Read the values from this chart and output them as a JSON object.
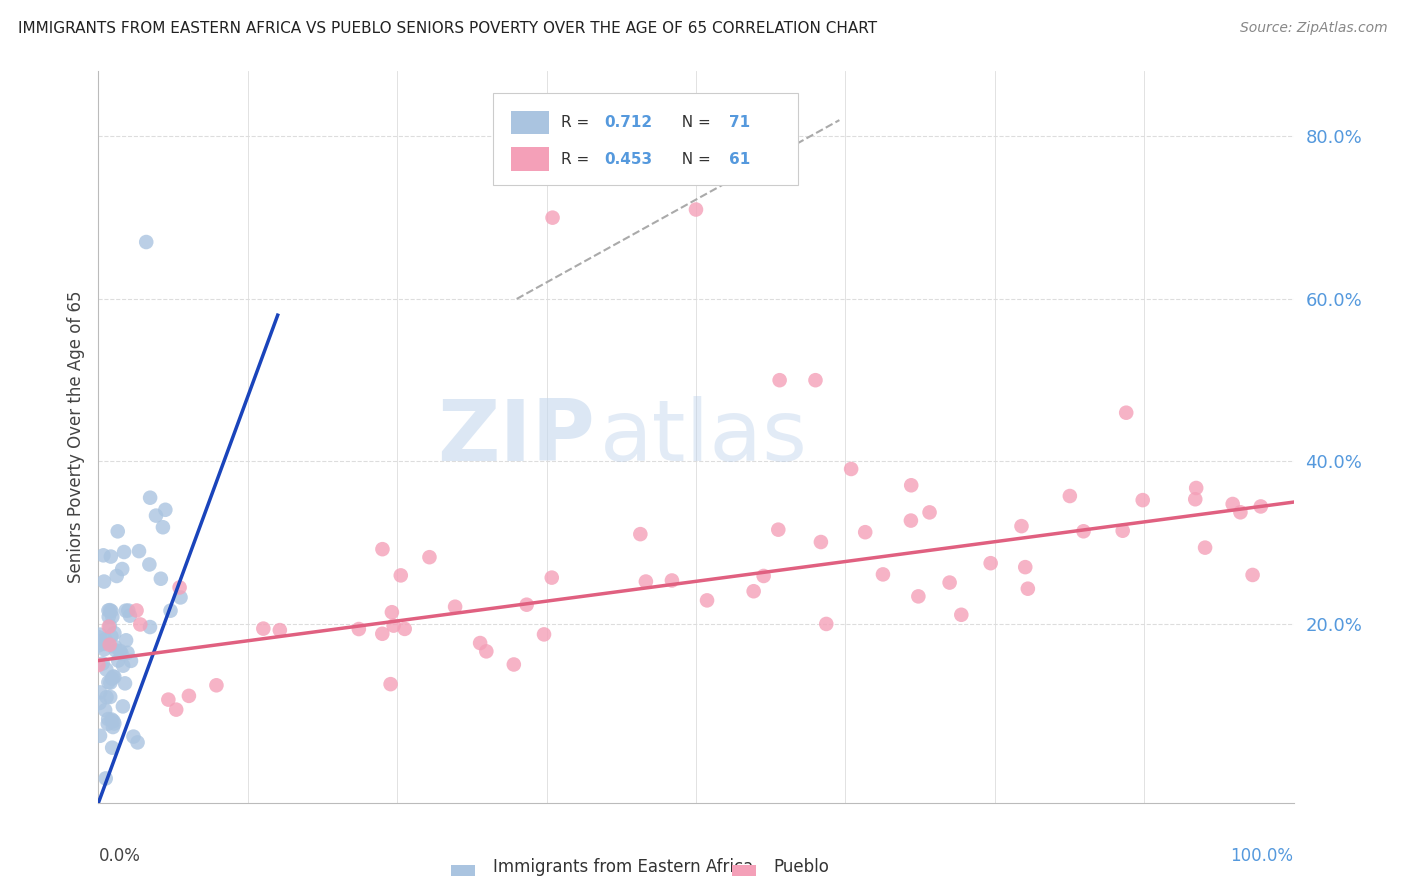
{
  "title": "IMMIGRANTS FROM EASTERN AFRICA VS PUEBLO SENIORS POVERTY OVER THE AGE OF 65 CORRELATION CHART",
  "source": "Source: ZipAtlas.com",
  "ylabel": "Seniors Poverty Over the Age of 65",
  "r_blue": 0.712,
  "n_blue": 71,
  "r_pink": 0.453,
  "n_pink": 61,
  "watermark_zip": "ZIP",
  "watermark_atlas": "atlas",
  "blue_color": "#aac4e0",
  "pink_color": "#f4a0b8",
  "blue_line_color": "#1a44bb",
  "pink_line_color": "#e06080",
  "legend_blue_label": "Immigrants from Eastern Africa",
  "legend_pink_label": "Pueblo",
  "background_color": "#ffffff",
  "grid_color": "#dddddd",
  "right_tick_color": "#5599dd",
  "blue_line_x": [
    0.0,
    0.15
  ],
  "blue_line_y": [
    -0.02,
    0.58
  ],
  "pink_line_x": [
    0.0,
    1.0
  ],
  "pink_line_y": [
    0.155,
    0.35
  ],
  "dash_line_x": [
    0.35,
    0.62
  ],
  "dash_line_y": [
    0.6,
    0.82
  ],
  "xlim": [
    0.0,
    1.0
  ],
  "ylim": [
    -0.02,
    0.88
  ],
  "yticks": [
    0.0,
    0.2,
    0.4,
    0.6,
    0.8
  ],
  "ytick_labels": [
    "",
    "20.0%",
    "40.0%",
    "60.0%",
    "80.0%"
  ]
}
